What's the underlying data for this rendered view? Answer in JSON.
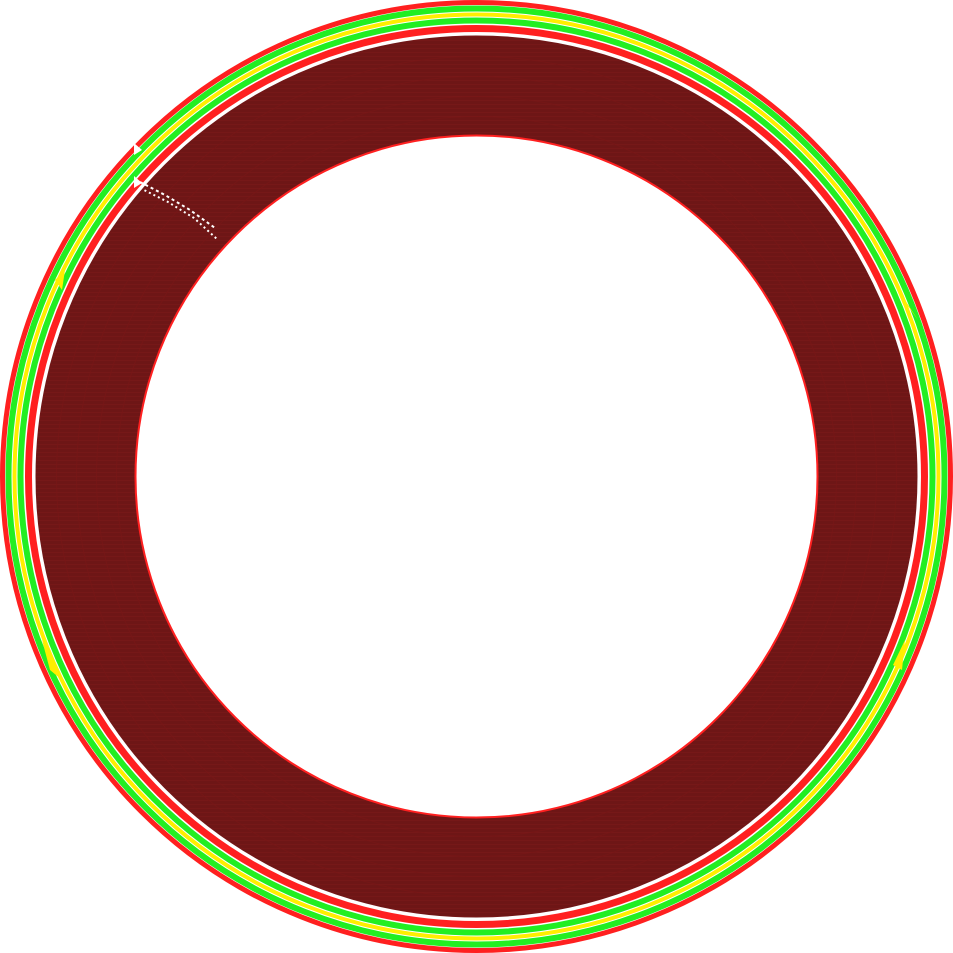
{
  "view": {
    "background": "#ffffff",
    "layers": [
      {
        "name": "outer-wall",
        "color": "#ff2020"
      },
      {
        "name": "support-band",
        "color": "#22ee22"
      },
      {
        "name": "inner-wall-loop",
        "color": "#ffee00"
      },
      {
        "name": "infill-region",
        "color": "#6e1616"
      },
      {
        "name": "seam-markers",
        "color": "#ffffff"
      }
    ],
    "icons": [
      "seam-arrow-icon",
      "seam-arrow-icon"
    ]
  }
}
